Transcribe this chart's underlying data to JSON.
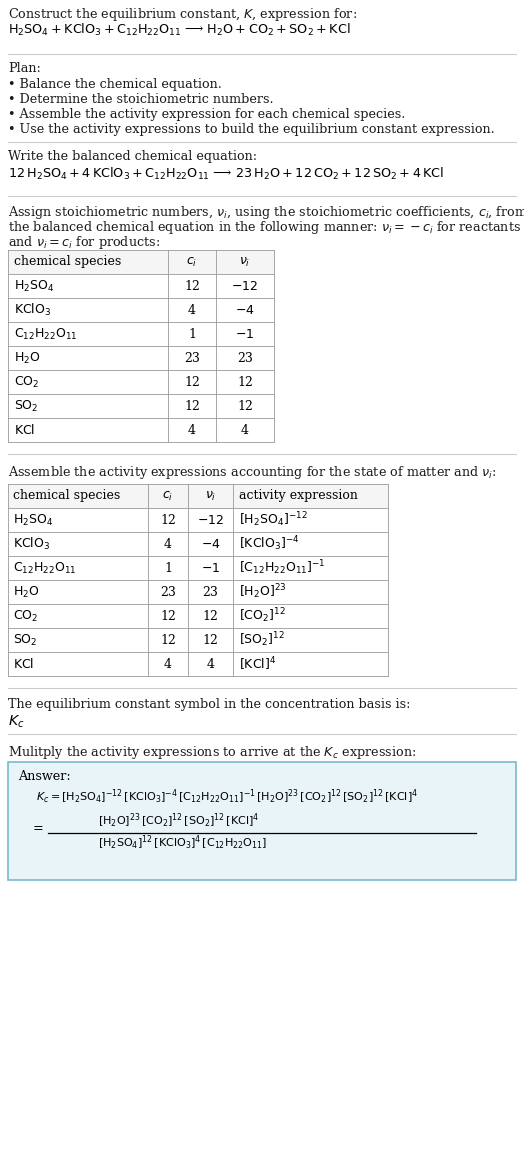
{
  "bg_color": "#ffffff",
  "title_line1": "Construct the equilibrium constant, $K$, expression for:",
  "title_line2": "$\\mathrm{H_2SO_4 + KClO_3 + C_{12}H_{22}O_{11}}$ ⟶ $\\mathrm{H_2O + CO_2 + SO_2 + KCl}$",
  "plan_header": "Plan:",
  "plan_items": [
    "• Balance the chemical equation.",
    "• Determine the stoichiometric numbers.",
    "• Assemble the activity expression for each chemical species.",
    "• Use the activity expressions to build the equilibrium constant expression."
  ],
  "balanced_header": "Write the balanced chemical equation:",
  "balanced_eq": "$\\mathrm{12\\,H_2SO_4 + 4\\,KClO_3 + C_{12}H_{22}O_{11}}$ ⟶ $\\mathrm{23\\,H_2O + 12\\,CO_2 + 12\\,SO_2 + 4\\,KCl}$",
  "stoich_header_parts": [
    "Assign stoichiometric numbers, $\\nu_i$, using the stoichiometric coefficients, $c_i$, from",
    "the balanced chemical equation in the following manner: $\\nu_i = -c_i$ for reactants",
    "and $\\nu_i = c_i$ for products:"
  ],
  "table1_rows": [
    [
      "$\\mathrm{H_2SO_4}$",
      "12",
      "$-12$"
    ],
    [
      "$\\mathrm{KClO_3}$",
      "4",
      "$-4$"
    ],
    [
      "$\\mathrm{C_{12}H_{22}O_{11}}$",
      "1",
      "$-1$"
    ],
    [
      "$\\mathrm{H_2O}$",
      "23",
      "23"
    ],
    [
      "$\\mathrm{CO_2}$",
      "12",
      "12"
    ],
    [
      "$\\mathrm{SO_2}$",
      "12",
      "12"
    ],
    [
      "$\\mathrm{KCl}$",
      "4",
      "4"
    ]
  ],
  "table2_rows": [
    [
      "$\\mathrm{H_2SO_4}$",
      "12",
      "$-12$",
      "$[\\mathrm{H_2SO_4}]^{-12}$"
    ],
    [
      "$\\mathrm{KClO_3}$",
      "4",
      "$-4$",
      "$[\\mathrm{KClO_3}]^{-4}$"
    ],
    [
      "$\\mathrm{C_{12}H_{22}O_{11}}$",
      "1",
      "$-1$",
      "$[\\mathrm{C_{12}H_{22}O_{11}}]^{-1}$"
    ],
    [
      "$\\mathrm{H_2O}$",
      "23",
      "23",
      "$[\\mathrm{H_2O}]^{23}$"
    ],
    [
      "$\\mathrm{CO_2}$",
      "12",
      "12",
      "$[\\mathrm{CO_2}]^{12}$"
    ],
    [
      "$\\mathrm{SO_2}$",
      "12",
      "12",
      "$[\\mathrm{SO_2}]^{12}$"
    ],
    [
      "$\\mathrm{KCl}$",
      "4",
      "4",
      "$[\\mathrm{KCl}]^{4}$"
    ]
  ],
  "kc_symbol_header": "The equilibrium constant symbol in the concentration basis is:",
  "multiply_header": "Mulitply the activity expressions to arrive at the $K_c$ expression:",
  "answer_box_color": "#e8f4f8",
  "answer_box_border": "#7ab8cc"
}
